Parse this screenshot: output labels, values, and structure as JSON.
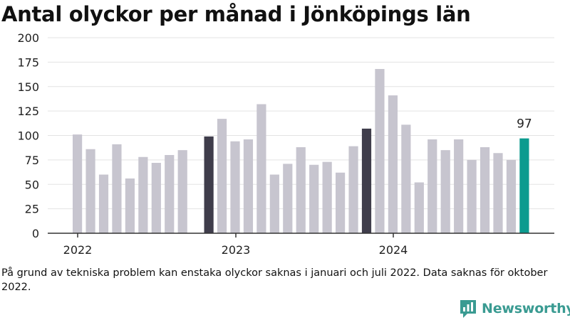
{
  "title": "Antal olyckor per månad i Jönköpings län",
  "note": "På grund av tekniska problem kan enstaka olyckor saknas i januari och juli 2022. Data saknas för oktober 2022.",
  "brand": {
    "name": "Newsworthy",
    "icon": "newsworthy-chart-logo-icon"
  },
  "colors": {
    "normal": "#c7c5cf",
    "january": "#3f3d4b",
    "latest": "#0c9b8f",
    "axis": "#333333",
    "grid": "#e3e3e3",
    "brand": "#3a9b92"
  },
  "chart_data": {
    "type": "bar",
    "title": "Antal olyckor per månad i Jönköpings län",
    "xlabel": "",
    "ylabel": "",
    "ylim": [
      0,
      200
    ],
    "yticks": [
      "0",
      "25",
      "50",
      "75",
      "100",
      "125",
      "150",
      "175",
      "200"
    ],
    "year_labels": [
      "2022",
      "2023",
      "2024"
    ],
    "grid": "horizontal",
    "categories": [
      "2022-01",
      "2022-02",
      "2022-03",
      "2022-04",
      "2022-05",
      "2022-06",
      "2022-07",
      "2022-08",
      "2022-09",
      "2022-10",
      "2022-11",
      "2022-12",
      "2023-01",
      "2023-02",
      "2023-03",
      "2023-04",
      "2023-05",
      "2023-06",
      "2023-07",
      "2023-08",
      "2023-09",
      "2023-10",
      "2023-11",
      "2023-12",
      "2024-01",
      "2024-02",
      "2024-03",
      "2024-04",
      "2024-05",
      "2024-06",
      "2024-07",
      "2024-08",
      "2024-09",
      "2024-10",
      "2024-11",
      "2024-12"
    ],
    "values": [
      101,
      86,
      60,
      91,
      56,
      78,
      72,
      80,
      85,
      null,
      99,
      117,
      94,
      96,
      132,
      60,
      71,
      88,
      70,
      73,
      62,
      89,
      107,
      168,
      141,
      111,
      52,
      96,
      85,
      96,
      75,
      88,
      82,
      75,
      97,
      null
    ],
    "highlight": {
      "label": "97"
    }
  }
}
